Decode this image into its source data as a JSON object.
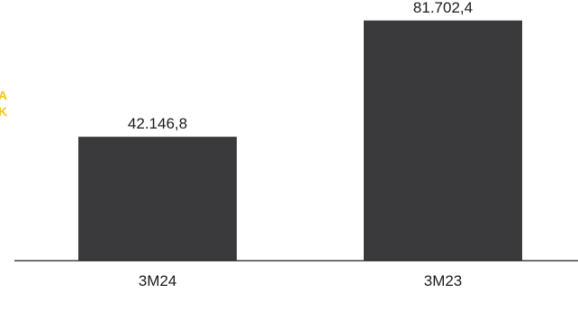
{
  "chart_data": {
    "type": "bar",
    "categories": [
      "3M24",
      "3M23"
    ],
    "values": [
      42146.8,
      81702.4
    ],
    "value_labels": [
      "42.146,8",
      "81.702,4"
    ],
    "title": "",
    "xlabel": "",
    "ylabel": "",
    "ylim": [
      0,
      85000
    ],
    "grid": false,
    "bar_color": "#3a3a3c"
  },
  "side_fragment": {
    "lines": [
      "A",
      "K"
    ],
    "color": "#f5c518"
  }
}
